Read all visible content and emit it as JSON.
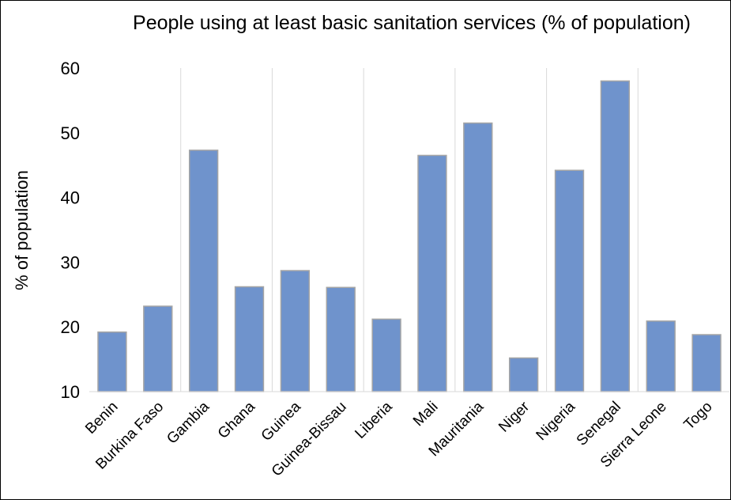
{
  "chart_data": {
    "type": "bar",
    "title": "People using at least basic sanitation services (% of population)",
    "xlabel": "",
    "ylabel": "% of population",
    "categories": [
      "Benin",
      "Burkina Faso",
      "Gambia",
      "Ghana",
      "Guinea",
      "Guinea-Bissau",
      "Liberia",
      "Mali",
      "Mauritania",
      "Niger",
      "Nigeria",
      "Senegal",
      "Sierra Leone",
      "Togo"
    ],
    "values": [
      19.2,
      23.2,
      47.3,
      26.2,
      28.7,
      26.1,
      21.2,
      46.5,
      51.5,
      15.2,
      44.2,
      58.0,
      20.9,
      18.8
    ],
    "ylim": [
      10,
      60
    ],
    "yticks": [
      10,
      20,
      30,
      40,
      50,
      60
    ],
    "grid": "vertical",
    "legend": "none",
    "colors": {
      "bar_fill": "#6f93cc",
      "bar_stroke": "#a5a5a5",
      "grid": "#d9d9d9",
      "text": "#000000",
      "border": "#000000"
    }
  }
}
